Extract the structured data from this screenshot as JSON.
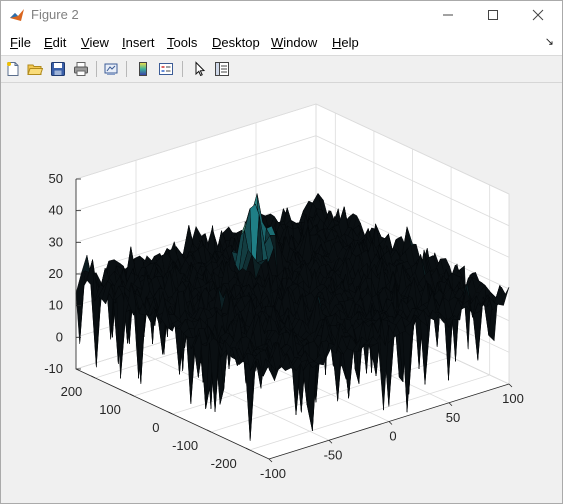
{
  "window": {
    "title": "Figure 2"
  },
  "menu": [
    {
      "label": "File",
      "u": "F",
      "rest": "ile"
    },
    {
      "label": "Edit",
      "u": "E",
      "rest": "dit"
    },
    {
      "label": "View",
      "u": "V",
      "rest": "iew"
    },
    {
      "label": "Insert",
      "u": "I",
      "rest": "nsert"
    },
    {
      "label": "Tools",
      "u": "T",
      "rest": "ools"
    },
    {
      "label": "Desktop",
      "u": "D",
      "rest": "esktop"
    },
    {
      "label": "Window",
      "u": "W",
      "rest": "indow"
    },
    {
      "label": "Help",
      "u": "H",
      "rest": "elp"
    }
  ],
  "toolbar": {
    "icons": [
      "new-figure-icon",
      "open-file-icon",
      "save-figure-icon",
      "print-figure-icon",
      "link-plot-icon",
      "insert-colorbar-icon",
      "insert-legend-icon",
      "edit-plot-icon",
      "property-inspector-icon"
    ]
  },
  "colors": {
    "surface_edge": "#0a0f12",
    "surface_mid": "#1f7f86",
    "peak": "#e8d94a",
    "grid": "#dcdcdc",
    "axes_bg": "#ffffff",
    "figure_bg": "#f0f0f0"
  },
  "chart_data": {
    "type": "surface",
    "title": "",
    "xlabel": "",
    "ylabel": "",
    "zlabel": "",
    "x_ticks": [
      "-100",
      "-50",
      "0",
      "50",
      "100"
    ],
    "y_ticks": [
      "-200",
      "-100",
      "0",
      "100",
      "200"
    ],
    "z_ticks": [
      "-10",
      "0",
      "10",
      "20",
      "30",
      "40",
      "50"
    ],
    "xlim": [
      -100,
      100
    ],
    "ylim": [
      -250,
      250
    ],
    "zlim": [
      -10,
      50
    ],
    "grid": true,
    "baseline_level": 20,
    "noise_min": -10,
    "noise_max": 26,
    "peak": {
      "x": 0,
      "y": 100,
      "z": 42
    }
  }
}
